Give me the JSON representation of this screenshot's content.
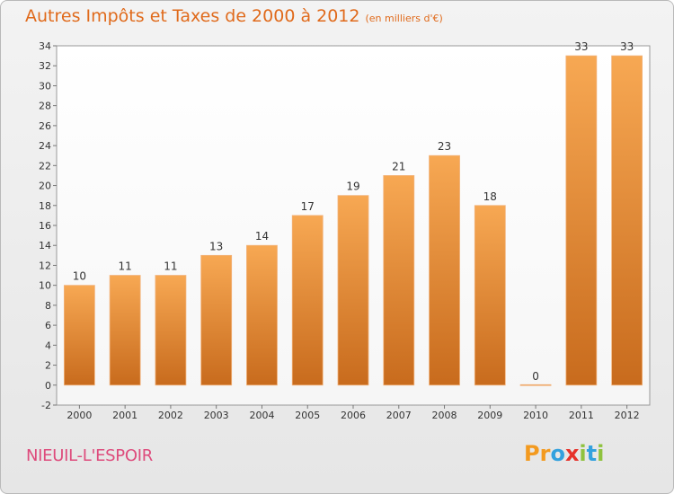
{
  "header": {
    "title": "Autres Impôts et Taxes de 2000 à 2012",
    "unit": "(en milliers d'€)"
  },
  "footer": {
    "commune": "NIEUIL-L'ESPOIR",
    "logo": "Proxiti"
  },
  "colors": {
    "bar_light": "#f6a54f",
    "bar_dark": "#c86d1f",
    "title": "#e06a1b",
    "commune": "#de4b7c"
  },
  "chart_data": {
    "type": "bar",
    "categories": [
      "2000",
      "2001",
      "2002",
      "2003",
      "2004",
      "2005",
      "2006",
      "2007",
      "2008",
      "2009",
      "2010",
      "2011",
      "2012"
    ],
    "values": [
      10,
      11,
      11,
      13,
      14,
      17,
      19,
      21,
      23,
      18,
      0,
      33,
      33
    ],
    "data_labels": [
      "10",
      "11",
      "11",
      "13",
      "14",
      "17",
      "19",
      "21",
      "23",
      "18",
      "0",
      "33",
      "33"
    ],
    "ylim": [
      -2,
      34
    ],
    "yticks": [
      -2,
      0,
      2,
      4,
      6,
      8,
      10,
      12,
      14,
      16,
      18,
      20,
      22,
      24,
      26,
      28,
      30,
      32,
      34
    ],
    "grid": false,
    "legend": "none"
  }
}
